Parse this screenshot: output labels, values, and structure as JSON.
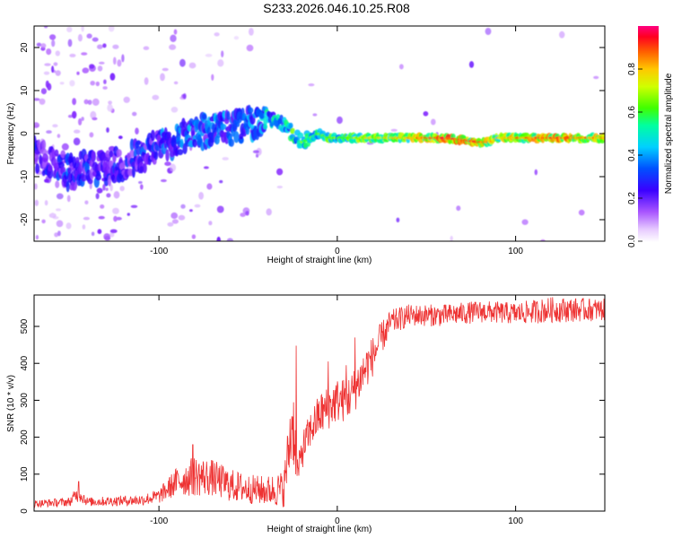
{
  "figure": {
    "title": "S233.2026.046.10.25.R08"
  },
  "chart_data": [
    {
      "type": "heatmap",
      "title": "S233.2026.046.10.25.R08",
      "xlabel": "Height of straight line (km)",
      "ylabel": "Frequency (Hz)",
      "xlim": [
        -170,
        150
      ],
      "ylim": [
        -25,
        25
      ],
      "x_ticks": [
        -100,
        0,
        100
      ],
      "y_ticks": [
        -20,
        -10,
        0,
        10,
        20
      ],
      "grid": false,
      "colormap": [
        "#e6c9ff",
        "#c17bff",
        "#8a2cff",
        "#4a00ff",
        "#0028ff",
        "#00a8ff",
        "#00f0e0",
        "#00ff60",
        "#9cff00",
        "#ffe600",
        "#ff9000",
        "#ff2a00",
        "#ff0066"
      ],
      "colorbar": {
        "label": "Normalized spectral amplitude",
        "range": [
          0,
          1
        ],
        "ticks": [
          "0.0",
          "0.2",
          "0.4",
          "0.6",
          "0.8"
        ]
      },
      "ridge": {
        "x": [
          -170,
          -160,
          -150,
          -140,
          -130,
          -120,
          -110,
          -100,
          -90,
          -80,
          -70,
          -60,
          -50,
          -40,
          -35,
          -30,
          -25,
          -20,
          -15,
          -10,
          -5,
          0,
          10,
          20,
          40,
          60,
          80,
          85,
          90,
          100,
          120,
          150
        ],
        "frequency": [
          -5,
          -7,
          -9,
          -8,
          -8,
          -7,
          -5,
          -3,
          -1,
          0,
          1,
          1,
          2,
          4,
          3,
          2,
          0,
          -2,
          -1,
          0,
          -1,
          -1,
          -1,
          -1,
          -1,
          -1,
          -2,
          -2,
          -1,
          -1,
          -1,
          -1
        ],
        "amplitude": [
          0.3,
          0.3,
          0.35,
          0.3,
          0.3,
          0.28,
          0.32,
          0.35,
          0.4,
          0.42,
          0.45,
          0.4,
          0.45,
          0.5,
          0.55,
          0.55,
          0.6,
          0.65,
          0.6,
          0.65,
          0.7,
          0.65,
          0.75,
          0.75,
          0.8,
          0.95,
          0.9,
          0.85,
          0.8,
          0.85,
          0.9,
          0.85
        ]
      }
    },
    {
      "type": "line",
      "xlabel": "Height of straight line (km)",
      "ylabel": "SNR (10 * v/v)",
      "xlim": [
        -170,
        150
      ],
      "ylim": [
        0,
        585
      ],
      "x_ticks": [
        -100,
        0,
        100
      ],
      "y_ticks": [
        0,
        100,
        200,
        300,
        400,
        500
      ],
      "grid": false,
      "color": "#ee3333",
      "envelope": {
        "x": [
          -170,
          -150,
          -145,
          -140,
          -110,
          -100,
          -90,
          -80,
          -70,
          -60,
          -50,
          -40,
          -30,
          -25,
          -22,
          -20,
          -15,
          -10,
          -5,
          0,
          5,
          10,
          15,
          20,
          25,
          30,
          40,
          60,
          80,
          100,
          120,
          150
        ],
        "y": [
          20,
          25,
          50,
          25,
          30,
          40,
          80,
          95,
          90,
          70,
          60,
          55,
          60,
          250,
          100,
          160,
          220,
          260,
          280,
          300,
          300,
          330,
          380,
          420,
          470,
          510,
          530,
          530,
          540,
          535,
          545,
          545
        ],
        "noise": [
          10,
          12,
          25,
          12,
          15,
          20,
          40,
          55,
          50,
          45,
          40,
          40,
          50,
          120,
          40,
          50,
          50,
          60,
          60,
          60,
          60,
          60,
          60,
          55,
          45,
          35,
          30,
          30,
          30,
          30,
          35,
          30
        ]
      },
      "spikes": [
        {
          "x": -145,
          "y": 80
        },
        {
          "x": -81,
          "y": 180
        },
        {
          "x": -23,
          "y": 448
        },
        {
          "x": -5,
          "y": 405
        },
        {
          "x": 5,
          "y": 395
        },
        {
          "x": 10,
          "y": 470
        }
      ]
    }
  ]
}
